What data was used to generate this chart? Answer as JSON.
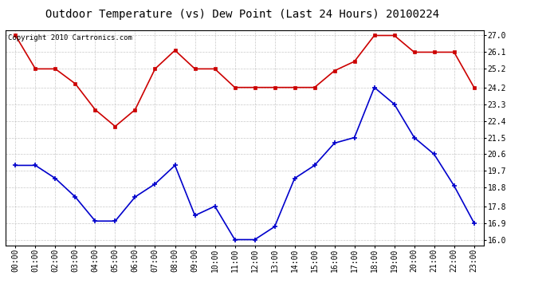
{
  "title": "Outdoor Temperature (vs) Dew Point (Last 24 Hours) 20100224",
  "copyright_text": "Copyright 2010 Cartronics.com",
  "x_labels": [
    "00:00",
    "01:00",
    "02:00",
    "03:00",
    "04:00",
    "05:00",
    "06:00",
    "07:00",
    "08:00",
    "09:00",
    "10:00",
    "11:00",
    "12:00",
    "13:00",
    "14:00",
    "15:00",
    "16:00",
    "17:00",
    "18:00",
    "19:00",
    "20:00",
    "21:00",
    "22:00",
    "23:00"
  ],
  "red_series": [
    27.0,
    25.2,
    25.2,
    24.4,
    23.0,
    22.1,
    23.0,
    25.2,
    26.2,
    25.2,
    25.2,
    24.2,
    24.2,
    24.2,
    24.2,
    24.2,
    25.1,
    25.6,
    27.0,
    27.0,
    26.1,
    26.1,
    26.1,
    24.2
  ],
  "blue_series": [
    20.0,
    20.0,
    19.3,
    18.3,
    17.0,
    17.0,
    18.3,
    19.0,
    20.0,
    17.3,
    17.8,
    16.0,
    16.0,
    16.7,
    19.3,
    20.0,
    21.2,
    21.5,
    24.2,
    23.3,
    21.5,
    20.6,
    18.9,
    16.9
  ],
  "y_ticks": [
    16.0,
    16.9,
    17.8,
    18.8,
    19.7,
    20.6,
    21.5,
    22.4,
    23.3,
    24.2,
    25.2,
    26.1,
    27.0
  ],
  "ylim": [
    15.7,
    27.3
  ],
  "red_color": "#cc0000",
  "blue_color": "#0000cc",
  "grid_color": "#bbbbbb",
  "bg_color": "#ffffff",
  "title_fontsize": 10,
  "tick_fontsize": 7,
  "copyright_fontsize": 6.5
}
